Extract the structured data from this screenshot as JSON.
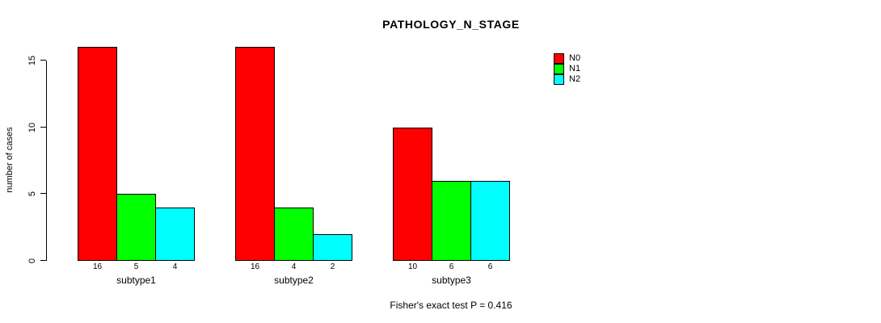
{
  "chart_data": {
    "type": "bar",
    "title": "PATHOLOGY_N_STAGE",
    "ylabel": "number of cases",
    "xlabel": "",
    "categories": [
      "subtype1",
      "subtype2",
      "subtype3"
    ],
    "series": [
      {
        "name": "N0",
        "color": "#FF0000",
        "values": [
          16,
          16,
          10
        ]
      },
      {
        "name": "N1",
        "color": "#00FF00",
        "values": [
          5,
          4,
          6
        ]
      },
      {
        "name": "N2",
        "color": "#00FFFF",
        "values": [
          4,
          2,
          6
        ]
      }
    ],
    "bar_value_labels": [
      [
        "16",
        "5",
        "4"
      ],
      [
        "16",
        "4",
        "2"
      ],
      [
        "10",
        "6",
        "6"
      ]
    ],
    "yticks": [
      0,
      5,
      10,
      15
    ],
    "ylim": [
      0,
      16
    ],
    "grid": false,
    "legend_position": "top-right",
    "annotation": "Fisher's exact test P = 0.416"
  }
}
